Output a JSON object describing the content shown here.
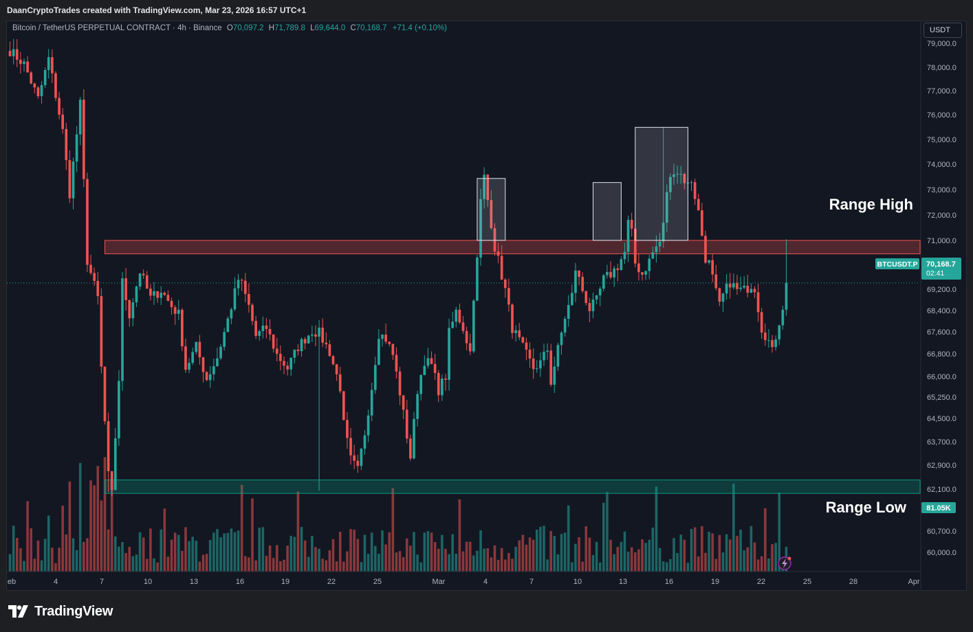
{
  "header": {
    "credit": "DaanCryptoTrades created with TradingView.com, Mar 23, 2026 16:57 UTC+1"
  },
  "legend": {
    "symbol": "Bitcoin / TetherUS PERPETUAL CONTRACT · 4h · Binance",
    "o_label": "O",
    "o_value": "70,097.2",
    "h_label": "H",
    "h_value": "71,789.8",
    "l_label": "L",
    "l_value": "69,644.0",
    "c_label": "C",
    "c_value": "70,168.7",
    "change": "+71.4 (+0.10%)"
  },
  "currency_button": "USDT",
  "footer": {
    "brand": "TradingView",
    "logo_icon": "tradingview-logo-icon"
  },
  "colors": {
    "up": "#26a69a",
    "down": "#ef5350",
    "background": "#131722",
    "range_high_zone": "#ef5350",
    "range_low_zone": "#089981"
  },
  "chart_data": {
    "type": "candlestick",
    "timeframe": "4h",
    "y_ticks": [
      "79,000.0",
      "78,000.0",
      "77,000.0",
      "76,000.0",
      "75,000.0",
      "74,000.0",
      "73,000.0",
      "72,000.0",
      "71,000.0",
      "69,200.0",
      "68,400.0",
      "67,600.0",
      "66,800.0",
      "66,000.0",
      "65,250.0",
      "64,500.0",
      "63,700.0",
      "62,900.0",
      "62,100.0",
      "60,700.0",
      "60,000.0"
    ],
    "x_ticks": [
      "eb",
      "4",
      "7",
      "10",
      "13",
      "16",
      "19",
      "22",
      "25",
      "Mar",
      "4",
      "7",
      "10",
      "13",
      "16",
      "19",
      "22",
      "25",
      "28",
      "Apr"
    ],
    "ylim": [
      59600,
      79200
    ],
    "close_path": [
      [
        0,
        78800
      ],
      [
        4,
        78300
      ],
      [
        8,
        77000
      ],
      [
        11,
        78500
      ],
      [
        15,
        75800
      ],
      [
        17,
        73500
      ],
      [
        20,
        76800
      ],
      [
        22,
        71000
      ],
      [
        25,
        69600
      ],
      [
        26,
        67000
      ],
      [
        28,
        63000
      ],
      [
        29,
        62300
      ],
      [
        31,
        66600
      ],
      [
        32,
        70200
      ],
      [
        34,
        69000
      ],
      [
        37,
        70600
      ],
      [
        40,
        69600
      ],
      [
        43,
        69900
      ],
      [
        46,
        69300
      ],
      [
        48,
        69000
      ],
      [
        50,
        67000
      ],
      [
        53,
        67800
      ],
      [
        56,
        66600
      ],
      [
        59,
        67400
      ],
      [
        62,
        68800
      ],
      [
        65,
        70300
      ],
      [
        66,
        70100
      ],
      [
        68,
        69300
      ],
      [
        70,
        68200
      ],
      [
        73,
        68500
      ],
      [
        76,
        67500
      ],
      [
        79,
        67000
      ],
      [
        82,
        67800
      ],
      [
        86,
        68400
      ],
      [
        88,
        68300
      ],
      [
        91,
        67600
      ],
      [
        94,
        66300
      ],
      [
        95,
        64900
      ],
      [
        97,
        63600
      ],
      [
        99,
        63200
      ],
      [
        101,
        64600
      ],
      [
        103,
        66300
      ],
      [
        105,
        68300
      ],
      [
        107,
        68100
      ],
      [
        109,
        67500
      ],
      [
        111,
        66100
      ],
      [
        114,
        63700
      ],
      [
        116,
        66200
      ],
      [
        118,
        67300
      ],
      [
        120,
        67100
      ],
      [
        122,
        66200
      ],
      [
        124,
        66700
      ],
      [
        125,
        68300
      ],
      [
        127,
        69100
      ],
      [
        129,
        68500
      ],
      [
        131,
        67600
      ],
      [
        132,
        69700
      ],
      [
        133,
        71000
      ],
      [
        134,
        73200
      ],
      [
        135,
        74100
      ],
      [
        137,
        72400
      ],
      [
        138,
        71500
      ],
      [
        139,
        71000
      ],
      [
        141,
        69900
      ],
      [
        143,
        68500
      ],
      [
        145,
        68000
      ],
      [
        147,
        67500
      ],
      [
        149,
        67000
      ],
      [
        151,
        67200
      ],
      [
        153,
        67700
      ],
      [
        154,
        66500
      ],
      [
        156,
        67700
      ],
      [
        158,
        68900
      ],
      [
        160,
        69700
      ],
      [
        161,
        70700
      ],
      [
        163,
        69900
      ],
      [
        165,
        69200
      ],
      [
        167,
        69500
      ],
      [
        169,
        70300
      ],
      [
        171,
        70500
      ],
      [
        173,
        70800
      ],
      [
        175,
        71300
      ],
      [
        176,
        72400
      ],
      [
        177,
        72000
      ],
      [
        178,
        70900
      ],
      [
        180,
        70500
      ],
      [
        182,
        71000
      ],
      [
        183,
        71300
      ],
      [
        185,
        71700
      ],
      [
        186,
        72300
      ],
      [
        187,
        73600
      ],
      [
        189,
        74400
      ],
      [
        191,
        74200
      ],
      [
        193,
        73800
      ],
      [
        194,
        74000
      ],
      [
        196,
        72800
      ],
      [
        198,
        71100
      ],
      [
        199,
        70900
      ],
      [
        201,
        69800
      ],
      [
        202,
        69300
      ],
      [
        203,
        69700
      ],
      [
        205,
        70200
      ],
      [
        207,
        69900
      ],
      [
        209,
        69900
      ],
      [
        211,
        70100
      ],
      [
        212,
        70000
      ],
      [
        214,
        68500
      ],
      [
        216,
        68000
      ],
      [
        217,
        67600
      ],
      [
        218,
        68200
      ],
      [
        220,
        69300
      ],
      [
        221,
        70100
      ]
    ],
    "n_candles": 222,
    "range_high": {
      "low": 71250,
      "high": 71750,
      "label": "Range High"
    },
    "range_low": {
      "low": 62350,
      "high": 62850,
      "label": "Range Low"
    },
    "highlight_boxes": [
      {
        "from": 134,
        "to": 140,
        "low": 71750,
        "high": 74050
      },
      {
        "from": 167,
        "to": 173,
        "low": 71750,
        "high": 73900
      },
      {
        "from": 179,
        "to": 192,
        "low": 71750,
        "high": 75950
      }
    ],
    "last_price": {
      "symbol": "BTCUSDT.P",
      "value": "70,168.7",
      "countdown": "02:41",
      "price": 70168.7
    },
    "volume": {
      "last_label": "81.05K",
      "max": 145
    }
  }
}
